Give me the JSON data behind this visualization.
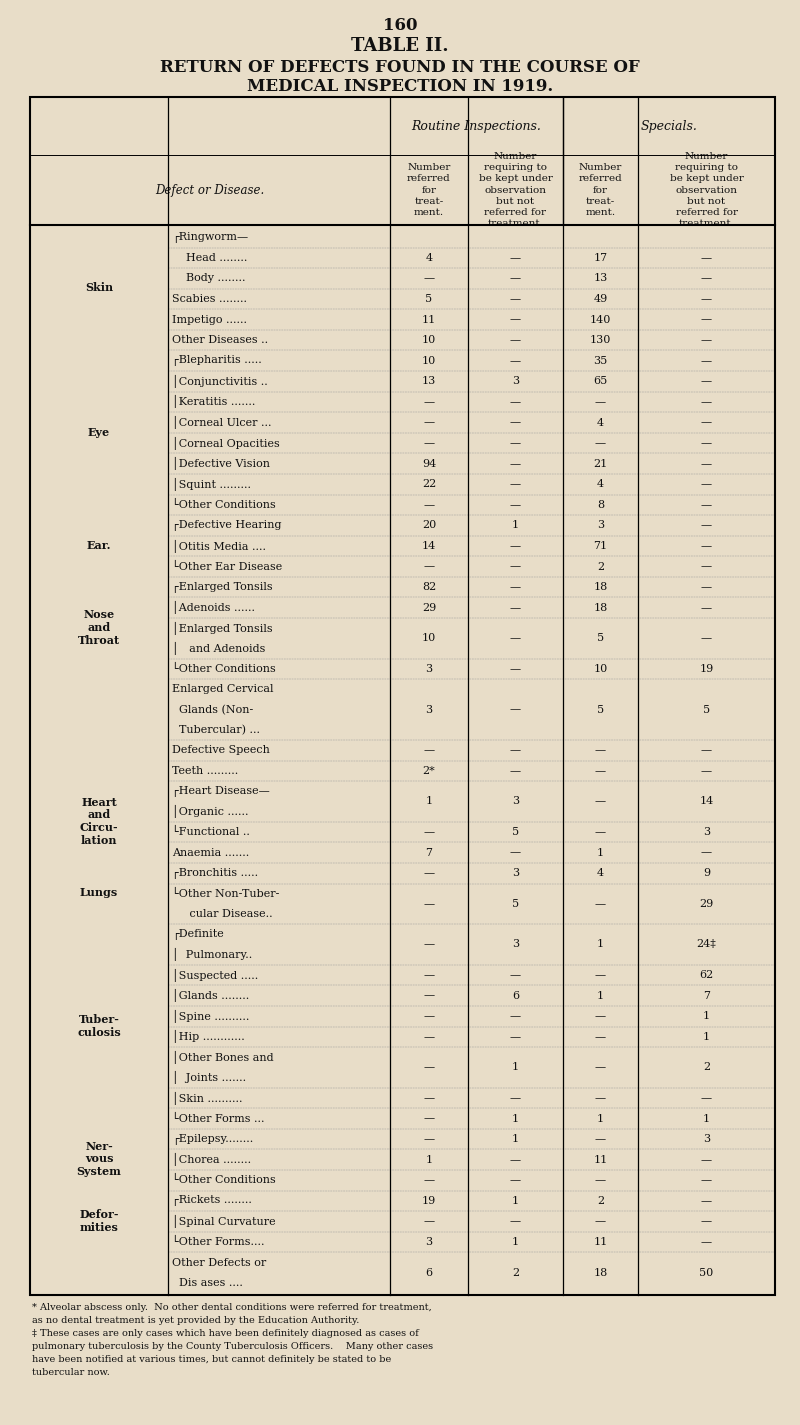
{
  "page_number": "160",
  "title_line1": "TABLE II.",
  "title_line2": "RETURN OF DEFECTS FOUND IN THE COURSE OF",
  "title_line3": "MEDICAL INSPECTION IN 1919.",
  "bg_color": "#e8ddc8",
  "header_routine": "Routine Inspections.",
  "header_specials": "Specials.",
  "rows": [
    {
      "category": "Skin",
      "label": "┌Ringworm—",
      "c1": "",
      "c2": "",
      "c3": "",
      "c4": "",
      "lh": 1
    },
    {
      "category": "Skin",
      "label": "    Head ........",
      "c1": "4",
      "c2": "—",
      "c3": "17",
      "c4": "—",
      "lh": 1
    },
    {
      "category": "Skin",
      "label": "    Body ........",
      "c1": "—",
      "c2": "—",
      "c3": "13",
      "c4": "—",
      "lh": 1
    },
    {
      "category": "Skin",
      "label": "Scabies ........",
      "c1": "5",
      "c2": "—",
      "c3": "49",
      "c4": "—",
      "lh": 1
    },
    {
      "category": "Skin",
      "label": "Impetigo ......",
      "c1": "11",
      "c2": "—",
      "c3": "140",
      "c4": "—",
      "lh": 1
    },
    {
      "category": "Skin",
      "label": "Other Diseases ..",
      "c1": "10",
      "c2": "—",
      "c3": "130",
      "c4": "—",
      "lh": 1
    },
    {
      "category": "Eye",
      "label": "┌Blepharitis .....",
      "c1": "10",
      "c2": "—",
      "c3": "35",
      "c4": "—",
      "lh": 1
    },
    {
      "category": "Eye",
      "label": "│Conjunctivitis ..",
      "c1": "13",
      "c2": "3",
      "c3": "65",
      "c4": "—",
      "lh": 1
    },
    {
      "category": "Eye",
      "label": "│Keratitis .......",
      "c1": "—",
      "c2": "—",
      "c3": "—",
      "c4": "—",
      "lh": 1
    },
    {
      "category": "Eye",
      "label": "│Corneal Ulcer ...",
      "c1": "—",
      "c2": "—",
      "c3": "4",
      "c4": "—",
      "lh": 1
    },
    {
      "category": "Eye",
      "label": "│Corneal Opacities",
      "c1": "—",
      "c2": "—",
      "c3": "—",
      "c4": "—",
      "lh": 1
    },
    {
      "category": "Eye",
      "label": "│Defective Vision",
      "c1": "94",
      "c2": "—",
      "c3": "21",
      "c4": "—",
      "lh": 1
    },
    {
      "category": "Eye",
      "label": "│Squint .........",
      "c1": "22",
      "c2": "—",
      "c3": "4",
      "c4": "—",
      "lh": 1
    },
    {
      "category": "Eye",
      "label": "└Other Conditions",
      "c1": "—",
      "c2": "—",
      "c3": "8",
      "c4": "—",
      "lh": 1
    },
    {
      "category": "Ear.",
      "label": "┌Defective Hearing",
      "c1": "20",
      "c2": "1",
      "c3": "3",
      "c4": "—",
      "lh": 1
    },
    {
      "category": "Ear.",
      "label": "│Otitis Media ....",
      "c1": "14",
      "c2": "—",
      "c3": "71",
      "c4": "—",
      "lh": 1
    },
    {
      "category": "Ear.",
      "label": "└Other Ear Disease",
      "c1": "—",
      "c2": "—",
      "c3": "2",
      "c4": "—",
      "lh": 1
    },
    {
      "category": "Nose\nand\nThroat",
      "label": "┌Enlarged Tonsils",
      "c1": "82",
      "c2": "—",
      "c3": "18",
      "c4": "—",
      "lh": 1
    },
    {
      "category": "Nose\nand\nThroat",
      "label": "│Adenoids ......",
      "c1": "29",
      "c2": "—",
      "c3": "18",
      "c4": "—",
      "lh": 1
    },
    {
      "category": "Nose\nand\nThroat",
      "label": "│Enlarged Tonsils\n│   and Adenoids",
      "c1": "10",
      "c2": "—",
      "c3": "5",
      "c4": "—",
      "lh": 2
    },
    {
      "category": "Nose\nand\nThroat",
      "label": "└Other Conditions",
      "c1": "3",
      "c2": "—",
      "c3": "10",
      "c4": "19",
      "lh": 1
    },
    {
      "category": "",
      "label": "Enlarged Cervical\n  Glands (Non-\n  Tubercular) ...",
      "c1": "3",
      "c2": "—",
      "c3": "5",
      "c4": "5",
      "lh": 3
    },
    {
      "category": "",
      "label": "Defective Speech",
      "c1": "—",
      "c2": "—",
      "c3": "—",
      "c4": "—",
      "lh": 1
    },
    {
      "category": "",
      "label": "Teeth .........",
      "c1": "2*",
      "c2": "—",
      "c3": "—",
      "c4": "—",
      "lh": 1
    },
    {
      "category": "Heart\nand\nCircu-\nlation",
      "label": "┌Heart Disease—\n│Organic ......",
      "c1": "1",
      "c2": "3",
      "c3": "—",
      "c4": "14",
      "lh": 2
    },
    {
      "category": "Heart\nand\nCircu-\nlation",
      "label": "└Functional ..",
      "c1": "—",
      "c2": "5",
      "c3": "—",
      "c4": "3",
      "lh": 1
    },
    {
      "category": "Heart\nand\nCircu-\nlation",
      "label": "Anaemia .......",
      "c1": "7",
      "c2": "—",
      "c3": "1",
      "c4": "—",
      "lh": 1
    },
    {
      "category": "Lungs",
      "label": "┌Bronchitis .....",
      "c1": "—",
      "c2": "3",
      "c3": "4",
      "c4": "9",
      "lh": 1
    },
    {
      "category": "Lungs",
      "label": "└Other Non-Tuber-\n     cular Disease..",
      "c1": "—",
      "c2": "5",
      "c3": "—",
      "c4": "29",
      "lh": 2
    },
    {
      "category": "Tuber-\nculosis",
      "label": "┌Definite\n│  Pulmonary..",
      "c1": "—",
      "c2": "3",
      "c3": "1",
      "c4": "24‡",
      "lh": 2
    },
    {
      "category": "Tuber-\nculosis",
      "label": "│Suspected .....",
      "c1": "—",
      "c2": "—",
      "c3": "—",
      "c4": "62",
      "lh": 1
    },
    {
      "category": "Tuber-\nculosis",
      "label": "│Glands ........",
      "c1": "—",
      "c2": "6",
      "c3": "1",
      "c4": "7",
      "lh": 1
    },
    {
      "category": "Tuber-\nculosis",
      "label": "│Spine ..........",
      "c1": "—",
      "c2": "—",
      "c3": "—",
      "c4": "1",
      "lh": 1
    },
    {
      "category": "Tuber-\nculosis",
      "label": "│Hip ............",
      "c1": "—",
      "c2": "—",
      "c3": "—",
      "c4": "1",
      "lh": 1
    },
    {
      "category": "Tuber-\nculosis",
      "label": "│Other Bones and\n│  Joints .......",
      "c1": "—",
      "c2": "1",
      "c3": "—",
      "c4": "2",
      "lh": 2
    },
    {
      "category": "Tuber-\nculosis",
      "label": "│Skin ..........",
      "c1": "—",
      "c2": "—",
      "c3": "—",
      "c4": "—",
      "lh": 1
    },
    {
      "category": "Tuber-\nculosis",
      "label": "└Other Forms ...",
      "c1": "—",
      "c2": "1",
      "c3": "1",
      "c4": "1",
      "lh": 1
    },
    {
      "category": "Ner-\nvous\nSystem",
      "label": "┌Epilepsy........",
      "c1": "—",
      "c2": "1",
      "c3": "—",
      "c4": "3",
      "lh": 1
    },
    {
      "category": "Ner-\nvous\nSystem",
      "label": "│Chorea ........",
      "c1": "1",
      "c2": "—",
      "c3": "11",
      "c4": "—",
      "lh": 1
    },
    {
      "category": "Ner-\nvous\nSystem",
      "label": "└Other Conditions",
      "c1": "—",
      "c2": "—",
      "c3": "—",
      "c4": "—",
      "lh": 1
    },
    {
      "category": "Defor-\nmities",
      "label": "┌Rickets ........",
      "c1": "19",
      "c2": "1",
      "c3": "2",
      "c4": "—",
      "lh": 1
    },
    {
      "category": "Defor-\nmities",
      "label": "│Spinal Curvature",
      "c1": "—",
      "c2": "—",
      "c3": "—",
      "c4": "—",
      "lh": 1
    },
    {
      "category": "Defor-\nmities",
      "label": "└Other Forms....",
      "c1": "3",
      "c2": "1",
      "c3": "11",
      "c4": "—",
      "lh": 1
    },
    {
      "category": "",
      "label": "Other Defects or\n  Dis ases ....",
      "c1": "6",
      "c2": "2",
      "c3": "18",
      "c4": "50",
      "lh": 2
    }
  ],
  "footnote1": "* Alveolar abscess only.  No other dental conditions were referred for treatment,",
  "footnote2": "as no dental treatment is yet provided by the Education Authority.",
  "footnote3": "‡ These cases are only cases which have been definitely diagnosed as cases of",
  "footnote4": "pulmonary tuberculosis by the County Tuberculosis Officers.    Many other cases",
  "footnote5": "have been notified at various times, but cannot definitely be stated to be",
  "footnote6": "tubercular now."
}
